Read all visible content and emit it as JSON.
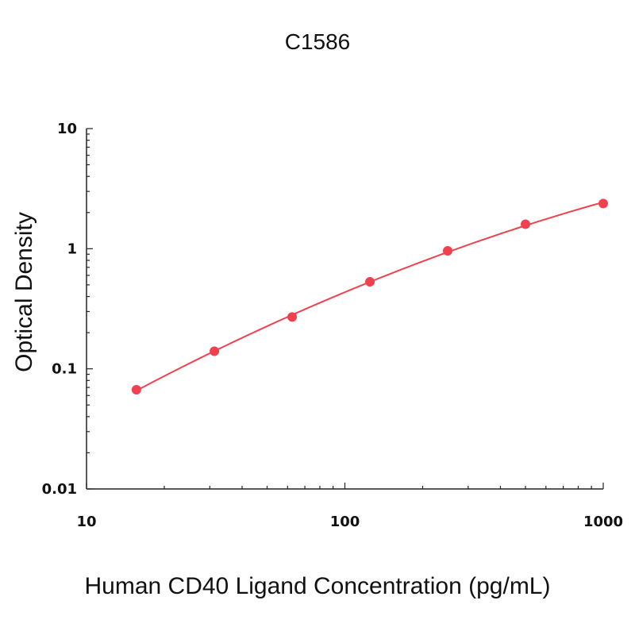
{
  "chart_data": {
    "type": "scatter",
    "title": "C1586",
    "xlabel": "Human CD40 Ligand Concentration (pg/mL)",
    "ylabel": "Optical Density",
    "x_scale": "log",
    "y_scale": "log",
    "xlim": [
      10,
      1000
    ],
    "ylim": [
      0.01,
      10
    ],
    "x_ticks": [
      10,
      100,
      1000
    ],
    "x_tick_labels": [
      "10",
      "100",
      "1000"
    ],
    "y_ticks": [
      0.01,
      0.1,
      1,
      10
    ],
    "y_tick_labels": [
      "0.01",
      "0.1",
      "1",
      "10"
    ],
    "grid": false,
    "color": "#f0414f",
    "series": [
      {
        "x": [
          15.6,
          31.25,
          62.5,
          125,
          250,
          500,
          1000
        ],
        "y": [
          0.067,
          0.14,
          0.27,
          0.53,
          0.96,
          1.6,
          2.38
        ]
      }
    ]
  }
}
